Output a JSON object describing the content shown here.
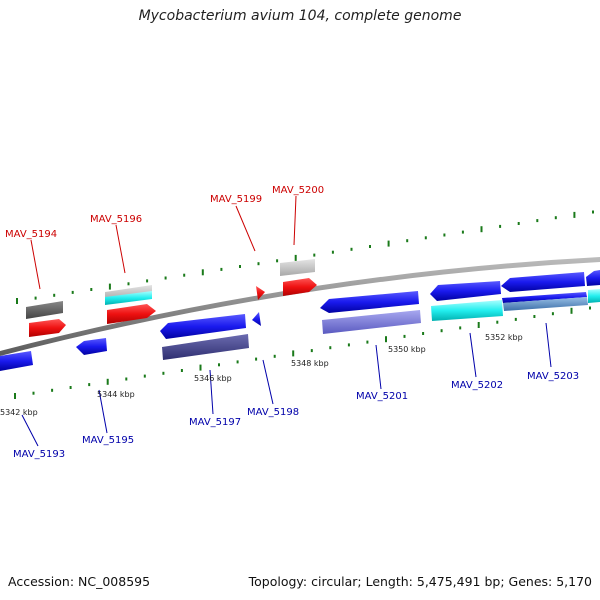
{
  "title": "Mycobacterium avium 104, complete genome",
  "footer": {
    "accession": "Accession: NC_008595",
    "summary": "Topology: circular; Length: 5,475,491 bp; Genes: 5,170"
  },
  "colors": {
    "plus_label": "#cc0000",
    "minus_label": "#0000aa",
    "tick": "#1a7a1a",
    "backbone": "#8a8a8a"
  },
  "coordinate_labels": [
    "5342 kbp",
    "5344 kbp",
    "5346 kbp",
    "5348 kbp",
    "5350 kbp",
    "5352 kbp"
  ],
  "gene_labels_plus": [
    "MAV_5194",
    "MAV_5196",
    "MAV_5199",
    "MAV_5200"
  ],
  "gene_labels_minus": [
    "MAV_5193",
    "MAV_5195",
    "MAV_5197",
    "MAV_5198",
    "MAV_5201",
    "MAV_5202",
    "MAV_5203"
  ]
}
